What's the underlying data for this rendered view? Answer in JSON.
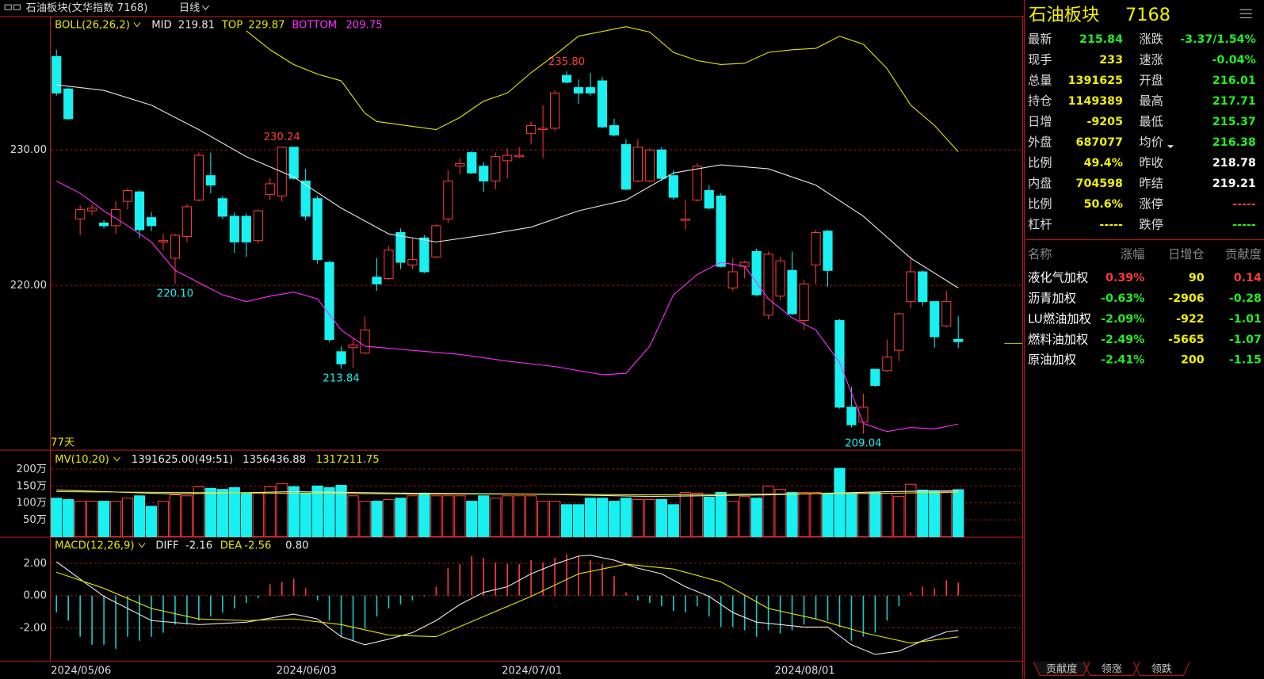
{
  "top_bar": {
    "title": "石油板块(文华指数 7168)",
    "period": "日线"
  },
  "chart_data": [
    {
      "type": "candlestick",
      "title": "BOLL(26,26,2)",
      "open": [
        236.9,
        234.5,
        224.9,
        225.5,
        224.6,
        224.4,
        226.2,
        226.9,
        225.0,
        223.2,
        222.0,
        223.6,
        226.3,
        228.1,
        226.4,
        225.1,
        225.1,
        223.3,
        226.7,
        226.6,
        230.2,
        227.7,
        226.4,
        221.7,
        215.1,
        215.4,
        215.0,
        220.6,
        220.5,
        223.9,
        221.5,
        223.5,
        222.1,
        224.9,
        228.8,
        229.8,
        228.8,
        227.7,
        229.2,
        229.5,
        231.2,
        231.5,
        231.6,
        235.5,
        234.6,
        234.6,
        235.1,
        231.8,
        230.4,
        227.7,
        227.7,
        230.0,
        228.1,
        224.8,
        226.3,
        227.0,
        226.6,
        219.8,
        221.4,
        222.5,
        217.8,
        219.2,
        221.1,
        217.4,
        221.5,
        224.0,
        217.4,
        211.0,
        209.9,
        213.8,
        213.7,
        215.2,
        218.8,
        221.0,
        218.8,
        217.0,
        216.01
      ],
      "high": [
        237.4,
        234.6,
        225.9,
        226.0,
        224.8,
        226.2,
        227.2,
        227.0,
        225.4,
        223.8,
        223.8,
        226.0,
        229.8,
        229.8,
        226.6,
        225.4,
        225.3,
        225.6,
        227.9,
        230.24,
        230.2,
        228.6,
        226.6,
        221.8,
        215.5,
        216.1,
        217.7,
        222.0,
        222.9,
        224.2,
        223.5,
        223.7,
        224.5,
        228.5,
        229.4,
        229.9,
        229.1,
        229.8,
        230.1,
        230.2,
        232.1,
        233.3,
        234.4,
        235.8,
        235.2,
        235.7,
        235.4,
        232.3,
        230.8,
        230.8,
        230.1,
        230.2,
        228.5,
        226.3,
        229.0,
        227.4,
        226.8,
        222.0,
        221.8,
        222.7,
        222.5,
        222.1,
        222.5,
        220.4,
        224.1,
        224.1,
        217.5,
        212.5,
        212.0,
        213.8,
        216.0,
        218.0,
        222.1,
        221.1,
        218.8,
        219.6,
        217.71
      ],
      "low": [
        234.0,
        232.2,
        223.7,
        225.2,
        224.2,
        223.8,
        225.6,
        223.5,
        224.0,
        222.6,
        220.1,
        223.2,
        226.2,
        226.8,
        224.9,
        222.4,
        222.1,
        223.1,
        226.3,
        226.2,
        227.8,
        224.8,
        221.6,
        215.8,
        213.84,
        213.9,
        214.9,
        219.6,
        220.4,
        221.2,
        221.2,
        220.9,
        222.0,
        224.6,
        228.2,
        228.2,
        226.9,
        227.1,
        227.9,
        229.4,
        230.4,
        229.4,
        231.4,
        234.9,
        233.4,
        234.0,
        231.6,
        231.0,
        227.0,
        227.6,
        227.6,
        227.7,
        226.3,
        224.1,
        226.2,
        225.6,
        221.3,
        219.6,
        220.5,
        219.2,
        217.5,
        218.9,
        217.8,
        216.7,
        220.1,
        219.9,
        210.9,
        209.5,
        209.04,
        212.5,
        213.6,
        214.4,
        218.3,
        218.5,
        215.4,
        216.9,
        215.37
      ],
      "close": [
        234.2,
        232.3,
        225.6,
        225.7,
        224.4,
        225.6,
        227.0,
        224.1,
        224.4,
        223.3,
        223.7,
        225.8,
        229.6,
        227.4,
        225.1,
        223.2,
        223.2,
        225.5,
        227.5,
        230.2,
        227.9,
        225.1,
        221.9,
        216.0,
        214.2,
        215.6,
        216.7,
        220.1,
        222.6,
        221.7,
        221.9,
        221.0,
        224.4,
        227.7,
        229.0,
        228.3,
        227.7,
        229.5,
        229.6,
        229.6,
        231.8,
        231.6,
        234.2,
        235.0,
        234.2,
        234.2,
        231.7,
        231.1,
        227.1,
        230.2,
        230.0,
        227.9,
        226.5,
        224.9,
        228.8,
        225.7,
        221.4,
        221.0,
        221.7,
        219.3,
        222.3,
        221.8,
        217.9,
        220.1,
        223.9,
        221.1,
        211.0,
        209.7,
        211.0,
        212.6,
        214.7,
        217.9,
        221.0,
        218.8,
        216.2,
        218.8,
        215.84
      ],
      "up_color": "#ff3b3b",
      "down_color": "#19f0f0",
      "ylim": [
        207.86,
        239.76
      ],
      "yticks": [
        {
          "value": 220,
          "label": "220.00"
        },
        {
          "value": 230,
          "label": "230.00"
        }
      ],
      "series": [
        {
          "name": "MID",
          "color": "#e6e6e6",
          "x": [
            0,
            4,
            8,
            12,
            16,
            20,
            24,
            28,
            32,
            36,
            40,
            44,
            48,
            52,
            56,
            60,
            64,
            68,
            72,
            76
          ],
          "values": [
            234.8,
            234.4,
            233.3,
            231.5,
            229.5,
            228.0,
            225.7,
            223.8,
            223.2,
            223.7,
            224.3,
            225.5,
            226.3,
            228.3,
            228.9,
            228.6,
            227.4,
            225.1,
            222.0,
            219.81
          ]
        },
        {
          "name": "TOP",
          "color": "#e6e600",
          "x": [
            16,
            18,
            20,
            22,
            24,
            26,
            27,
            32,
            34,
            36,
            38,
            40,
            42,
            44,
            48,
            50,
            52,
            54,
            56,
            58,
            60,
            62,
            64,
            66,
            68,
            70,
            72,
            74,
            76
          ],
          "values": [
            238.8,
            237.4,
            236.3,
            235.6,
            235.1,
            232.7,
            232.1,
            231.5,
            232.4,
            233.6,
            234.2,
            235.7,
            237.0,
            238.4,
            239.1,
            238.7,
            237.2,
            236.6,
            236.3,
            236.4,
            237.2,
            237.4,
            237.5,
            238.4,
            237.8,
            236.0,
            233.3,
            231.8,
            229.87
          ]
        },
        {
          "name": "BOTTOM",
          "color": "#ff2cff",
          "x": [
            0,
            2,
            4,
            6,
            8,
            10,
            12,
            14,
            16,
            18,
            20,
            22,
            24,
            26,
            30,
            34,
            38,
            42,
            46,
            48,
            50,
            52,
            54,
            56,
            58,
            60,
            62,
            64,
            66,
            68,
            70,
            72,
            74,
            76
          ],
          "values": [
            227.7,
            226.8,
            225.5,
            224.4,
            223.2,
            221.1,
            220.2,
            219.3,
            218.8,
            219.2,
            219.5,
            219.0,
            216.7,
            215.5,
            215.2,
            214.9,
            214.4,
            214.0,
            213.4,
            213.5,
            215.5,
            219.3,
            220.8,
            221.7,
            221.4,
            219.0,
            217.6,
            216.7,
            214.3,
            209.8,
            209.2,
            209.5,
            209.4,
            209.75
          ]
        }
      ],
      "annotations": [
        {
          "index": 19,
          "at": "high",
          "label": "230.24"
        },
        {
          "index": 10,
          "at": "low",
          "label": "220.10"
        },
        {
          "index": 24,
          "at": "low",
          "label": "213.84"
        },
        {
          "index": 43,
          "at": "high",
          "label": "235.80"
        },
        {
          "index": 68,
          "at": "low",
          "label": "209.04"
        }
      ],
      "days_label": "77天"
    },
    {
      "type": "volume",
      "title": "MV(10,20)",
      "header_value": "1391625.00(49:51)",
      "values": [
        1140000,
        1100000,
        1050000,
        1050000,
        1050000,
        1050000,
        1140000,
        1210000,
        900000,
        1050000,
        1240000,
        1210000,
        1480000,
        1430000,
        1400000,
        1450000,
        1290000,
        1290000,
        1480000,
        1570000,
        1480000,
        1290000,
        1500000,
        1450000,
        1520000,
        1210000,
        1050000,
        1050000,
        1100000,
        1140000,
        1210000,
        1290000,
        1210000,
        1210000,
        1210000,
        1050000,
        1210000,
        1140000,
        1210000,
        1210000,
        1210000,
        1050000,
        1050000,
        950000,
        950000,
        1140000,
        1140000,
        1050000,
        1140000,
        1100000,
        1100000,
        1100000,
        950000,
        1310000,
        1290000,
        1170000,
        1310000,
        1050000,
        1190000,
        1140000,
        1500000,
        1400000,
        1310000,
        1310000,
        1310000,
        1290000,
        2020000,
        1290000,
        1290000,
        1310000,
        1290000,
        1190000,
        1550000,
        1380000,
        1360000,
        1330000,
        1391625
      ],
      "ylim": [
        0,
        2476000
      ],
      "yticks": [
        {
          "value": 500000,
          "label": "50万"
        },
        {
          "value": 1000000,
          "label": "100万"
        },
        {
          "value": 1500000,
          "label": "150万"
        },
        {
          "value": 2000000,
          "label": "200万"
        }
      ],
      "series": [
        {
          "color": "#e6e6e6",
          "x": [
            0,
            10,
            20,
            30,
            40,
            50,
            60,
            70,
            76
          ],
          "values": [
            1380000,
            1262000,
            1333000,
            1286000,
            1262000,
            1190000,
            1238000,
            1333000,
            1356436.88
          ]
        },
        {
          "color": "#e6e600",
          "x": [
            0,
            10,
            20,
            30,
            40,
            50,
            60,
            70,
            76
          ],
          "values": [
            1333000,
            1310000,
            1286000,
            1262000,
            1262000,
            1238000,
            1262000,
            1286000,
            1317211.75
          ]
        }
      ]
    },
    {
      "type": "macd",
      "title": "MACD(12,26,9)",
      "header_value": "0.80",
      "categories": [
        "2024/05/06",
        null,
        null,
        null,
        null,
        null,
        null,
        null,
        null,
        null,
        null,
        null,
        null,
        null,
        null,
        null,
        null,
        null,
        null,
        "2024/06/03",
        null,
        null,
        null,
        null,
        null,
        null,
        null,
        null,
        null,
        null,
        null,
        null,
        null,
        null,
        null,
        null,
        null,
        null,
        "2024/07/01",
        null,
        null,
        null,
        null,
        null,
        null,
        null,
        null,
        null,
        null,
        null,
        null,
        null,
        null,
        null,
        null,
        null,
        null,
        null,
        null,
        null,
        null,
        "2024/08/01",
        null,
        null,
        null,
        null,
        null,
        null,
        null,
        null,
        null,
        null,
        null,
        null,
        null,
        null,
        null
      ],
      "values": [
        -1.05,
        -1.55,
        -2.55,
        -3.05,
        -3.05,
        -3.3,
        -2.55,
        -2.8,
        -2.55,
        -2.3,
        -1.8,
        -1.8,
        -1.55,
        -1.3,
        -1.05,
        -0.8,
        -0.45,
        -0.15,
        0.7,
        0.85,
        1.05,
        0.45,
        -0.3,
        -1.55,
        -2.55,
        -2.8,
        -2.05,
        -1.3,
        -0.8,
        -0.55,
        -0.3,
        -0.05,
        0.55,
        1.7,
        1.95,
        2.45,
        2.35,
        2.05,
        1.95,
        1.95,
        2.2,
        2.05,
        2.35,
        2.55,
        2.45,
        2.2,
        1.95,
        1.2,
        0.2,
        -0.3,
        -0.45,
        -0.65,
        -0.95,
        -1.05,
        -0.65,
        -1.3,
        -1.95,
        -1.95,
        -2.15,
        -2.55,
        -2.15,
        -2.35,
        -2.15,
        -1.8,
        -1.45,
        -1.55,
        -1.95,
        -2.8,
        -2.55,
        -2.3,
        -1.55,
        -0.65,
        0.2,
        0.55,
        0.45,
        0.95,
        0.8
      ],
      "up_color": "#ff3b3b",
      "down_color": "#19c8c8",
      "ylim": [
        -4.05,
        3.55
      ],
      "yticks": [
        {
          "value": -2,
          "label": "-2.00"
        },
        {
          "value": 0,
          "label": "0.00"
        },
        {
          "value": 2,
          "label": "2.00"
        }
      ],
      "series": [
        {
          "name": "DIFF",
          "color": "#e6e6e6",
          "x": [
            0,
            4,
            8,
            12,
            16,
            20,
            22,
            24,
            26,
            28,
            30,
            32,
            34,
            36,
            38,
            40,
            42,
            44,
            45,
            47,
            49,
            51,
            53,
            55,
            57,
            59,
            61,
            63,
            65,
            67,
            69,
            71,
            73,
            75,
            76
          ],
          "values": [
            2.1,
            -0.05,
            -1.55,
            -1.8,
            -1.65,
            -1.15,
            -1.45,
            -2.55,
            -3.05,
            -2.7,
            -2.3,
            -1.55,
            -0.55,
            0.2,
            0.55,
            1.35,
            1.95,
            2.45,
            2.5,
            2.2,
            1.7,
            1.35,
            0.55,
            -0.05,
            -1.05,
            -1.65,
            -1.8,
            -1.95,
            -1.95,
            -3.05,
            -3.65,
            -3.45,
            -2.8,
            -2.25,
            -2.16
          ]
        },
        {
          "name": "DEA",
          "color": "#e6e600",
          "x": [
            0,
            4,
            8,
            12,
            16,
            20,
            24,
            28,
            32,
            36,
            40,
            44,
            48,
            52,
            56,
            60,
            64,
            68,
            72,
            76
          ],
          "values": [
            1.45,
            0.45,
            -0.8,
            -1.45,
            -1.55,
            -1.45,
            -1.8,
            -2.45,
            -2.55,
            -1.3,
            -0.05,
            1.35,
            1.95,
            1.65,
            0.85,
            -0.8,
            -1.45,
            -2.3,
            -2.95,
            -2.56
          ]
        }
      ]
    }
  ],
  "quote": {
    "title": "石油板块",
    "code": "7168",
    "left": [
      {
        "label": "最新",
        "value": "215.84",
        "color": "#22ee22"
      },
      {
        "label": "现手",
        "value": "233",
        "color": "#f0f000"
      },
      {
        "label": "总量",
        "value": "1391625",
        "color": "#f0f000"
      },
      {
        "label": "持仓",
        "value": "1149389",
        "color": "#f0f000"
      },
      {
        "label": "日增",
        "value": "-9205",
        "color": "#f0f000"
      },
      {
        "label": "外盘",
        "value": "687077",
        "color": "#f0f000"
      },
      {
        "label": "比例",
        "value": "49.4%",
        "color": "#f0f000"
      },
      {
        "label": "内盘",
        "value": "704598",
        "color": "#f0f000"
      },
      {
        "label": "比例",
        "value": "50.6%",
        "color": "#f0f000"
      },
      {
        "label": "杠杆",
        "value": "-----",
        "color": "#f0f000"
      }
    ],
    "right": [
      {
        "label": "涨跌",
        "value": "-3.37/1.54%",
        "color": "#22ee22"
      },
      {
        "label": "速涨",
        "value": "-0.04%",
        "color": "#22ee22"
      },
      {
        "label": "开盘",
        "value": "216.01",
        "color": "#22ee22"
      },
      {
        "label": "最高",
        "value": "217.71",
        "color": "#22ee22"
      },
      {
        "label": "最低",
        "value": "215.37",
        "color": "#22ee22"
      },
      {
        "label": "均价",
        "value": "216.38",
        "color": "#22ee22"
      },
      {
        "label": "昨收",
        "value": "218.78",
        "color": "#ffffff"
      },
      {
        "label": "昨结",
        "value": "219.21",
        "color": "#ffffff"
      },
      {
        "label": "涨停",
        "value": "-----",
        "color": "#ff3b3b"
      },
      {
        "label": "跌停",
        "value": "-----",
        "color": "#22ee22"
      }
    ]
  },
  "table": {
    "header": [
      "名称",
      "涨幅",
      "日增仓",
      "贡献度"
    ],
    "rows": [
      [
        "液化气加权",
        "0.39%",
        "90",
        "0.14"
      ],
      [
        "沥青加权",
        "-0.63%",
        "-2906",
        "-0.28"
      ],
      [
        "LU燃油加权",
        "-2.09%",
        "-922",
        "-1.01"
      ],
      [
        "燃料油加权",
        "-2.49%",
        "-5665",
        "-1.07"
      ],
      [
        "原油加权",
        "-2.41%",
        "200",
        "-1.15"
      ]
    ]
  },
  "tabs": [
    "贡献度",
    "领涨",
    "领跌"
  ]
}
